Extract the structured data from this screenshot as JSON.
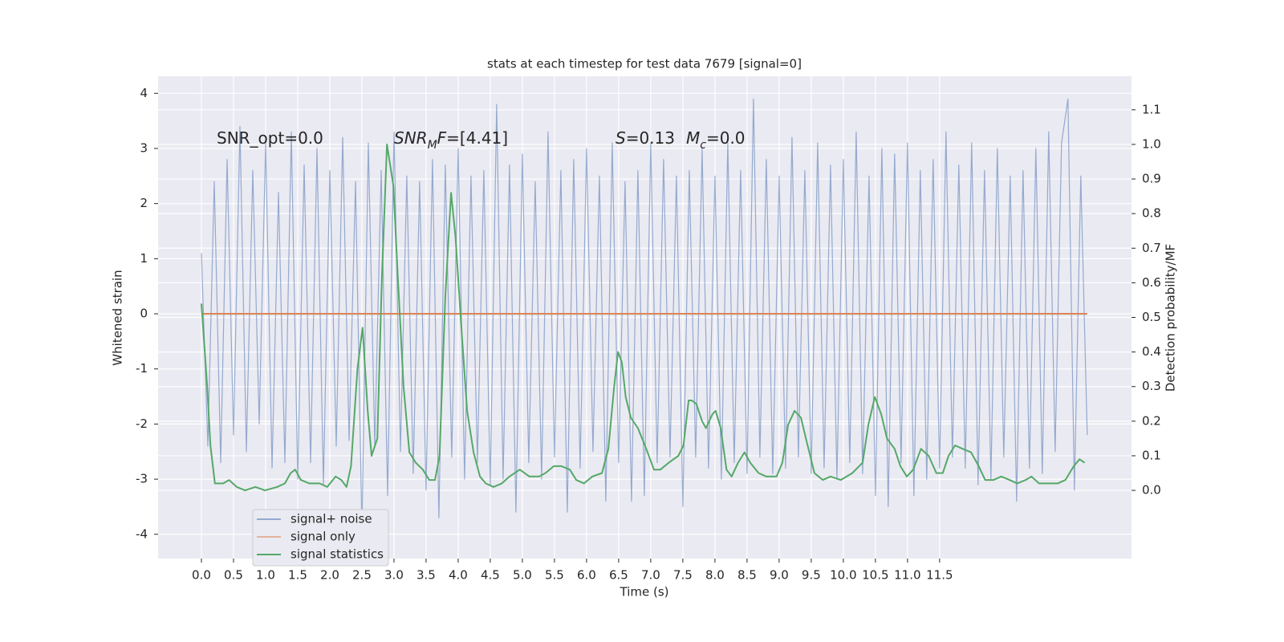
{
  "chart_data": {
    "type": "line",
    "title": "stats at each timestep for test data 7679 [signal=0]",
    "xlabel": "Time (s)",
    "ylabel": "Whitened strain",
    "y2label": "Detection probability/MF",
    "xlim": [
      -0.675,
      14.49
    ],
    "ylim": [
      -4.44,
      4.31
    ],
    "y2lim": [
      -0.197,
      1.197
    ],
    "xticks": [
      {
        "value": 0,
        "label": "0.0"
      },
      0.5,
      {
        "value": 1,
        "label": "1.0"
      },
      1.5,
      {
        "value": 2,
        "label": "2.0"
      },
      2.5,
      {
        "value": 3,
        "label": "3.0"
      },
      3.5,
      {
        "value": 4,
        "label": "4.0"
      },
      4.5,
      {
        "value": 5,
        "label": "5.0"
      },
      5.5,
      {
        "value": 6,
        "label": "6.0"
      },
      6.5,
      {
        "value": 7,
        "label": "7.0"
      },
      7.5,
      {
        "value": 8,
        "label": "8.0"
      },
      8.5,
      {
        "value": 9,
        "label": "9.0"
      },
      9.5,
      {
        "value": 10,
        "label": "10.0"
      },
      10.5,
      {
        "value": 11,
        "label": "11.0"
      },
      11.5
    ],
    "yticks": [
      -4,
      -3,
      -2,
      -1,
      0,
      1,
      2,
      3,
      4
    ],
    "y2ticks": [
      {
        "value": 0,
        "label": "0.0"
      },
      0.1,
      0.2,
      0.3,
      0.4,
      0.5,
      0.6,
      0.7,
      0.8,
      0.9,
      {
        "value": 1,
        "label": "1.0"
      },
      1.1
    ],
    "grid": true,
    "legend": "lower left",
    "annotations": [
      {
        "parts": [
          {
            "text": "SNR_opt=0.0"
          }
        ]
      },
      {
        "parts": [
          {
            "text": "SNR",
            "style": "italic"
          },
          {
            "text": "M",
            "style": "sub"
          },
          {
            "text": "F",
            "style": "italic"
          },
          {
            "text": "=[4.41]"
          }
        ]
      },
      {
        "parts": [
          {
            "text": "S",
            "style": "italic"
          },
          {
            "text": "=0.13"
          },
          {
            "text": "M",
            "style": "italic"
          },
          {
            "text": "c",
            "style": "sub"
          },
          {
            "text": "=0.0"
          }
        ]
      }
    ],
    "series": [
      {
        "name": "signal+ noise",
        "color": "#4c72b0",
        "x": [
          0,
          0.1,
          0.2,
          0.3,
          0.4,
          0.5,
          0.6,
          0.7,
          0.8,
          0.9,
          1,
          1.1,
          1.2,
          1.3,
          1.4,
          1.5,
          1.6,
          1.7,
          1.8,
          1.9,
          2,
          2.1,
          2.2,
          2.3,
          2.4,
          2.5,
          2.6,
          2.7,
          2.8,
          2.9,
          3,
          3.1,
          3.2,
          3.3,
          3.4,
          3.5,
          3.6,
          3.7,
          3.8,
          3.9,
          4,
          4.1,
          4.2,
          4.3,
          4.4,
          4.5,
          4.6,
          4.7,
          4.8,
          4.9,
          5,
          5.1,
          5.2,
          5.3,
          5.4,
          5.5,
          5.6,
          5.7,
          5.8,
          5.9,
          6,
          6.1,
          6.2,
          6.3,
          6.4,
          6.5,
          6.6,
          6.7,
          6.8,
          6.9,
          7,
          7.1,
          7.2,
          7.3,
          7.4,
          7.5,
          7.6,
          7.7,
          7.8,
          7.9,
          8,
          8.1,
          8.2,
          8.3,
          8.4,
          8.5,
          8.6,
          8.7,
          8.8,
          8.9,
          9,
          9.1,
          9.2,
          9.3,
          9.4,
          9.5,
          9.6,
          9.7,
          9.8,
          9.9,
          10,
          10.1,
          10.2,
          10.3,
          10.4,
          10.5,
          10.6,
          10.7,
          10.8,
          10.9,
          11,
          11.1,
          11.2,
          11.3,
          11.4,
          11.5,
          11.6,
          11.7,
          11.8,
          11.9,
          12,
          12.1,
          12.2,
          12.3,
          12.4,
          12.5,
          12.6,
          12.7,
          12.8,
          12.9,
          13,
          13.1,
          13.2,
          13.3,
          13.4,
          13.5,
          13.6,
          13.7,
          13.8
        ],
        "values": [
          1.1,
          -2.4,
          2.4,
          -2.7,
          2.8,
          -2.2,
          3.4,
          -2.5,
          2.6,
          -2.0,
          3.1,
          -2.8,
          2.2,
          -2.7,
          3.3,
          -3.0,
          2.7,
          -2.7,
          3.0,
          -3.1,
          2.6,
          -2.4,
          3.2,
          -2.3,
          2.4,
          -3.9,
          3.1,
          -2.4,
          2.6,
          -3.3,
          3.3,
          -2.5,
          2.5,
          -2.9,
          2.4,
          -3.2,
          2.8,
          -3.7,
          2.7,
          -2.6,
          3.0,
          -3.0,
          2.5,
          -2.7,
          2.6,
          -3.1,
          3.8,
          -3.0,
          2.7,
          -3.6,
          2.9,
          -2.7,
          2.4,
          -3.0,
          3.3,
          -2.6,
          2.6,
          -3.6,
          2.8,
          -2.8,
          3.0,
          -2.5,
          2.5,
          -3.4,
          3.1,
          -2.7,
          2.4,
          -3.4,
          2.6,
          -3.3,
          3.1,
          -2.7,
          2.8,
          -2.6,
          2.5,
          -3.5,
          2.6,
          -2.6,
          3.0,
          -2.8,
          2.5,
          -3.0,
          3.1,
          -2.7,
          2.6,
          -2.9,
          3.9,
          -2.6,
          2.8,
          -2.9,
          2.5,
          -2.8,
          3.2,
          -2.6,
          2.6,
          -2.9,
          3.1,
          -2.8,
          2.7,
          -3.0,
          2.8,
          -2.7,
          3.3,
          -2.9,
          2.5,
          -3.3,
          3.0,
          -3.5,
          2.9,
          -2.7,
          3.1,
          -3.3,
          2.6,
          -3.0,
          2.8,
          -2.8,
          3.3,
          -2.6,
          2.7,
          -2.8,
          3.1,
          -3.1,
          2.6,
          -3.0,
          3.0,
          -2.6,
          2.5,
          -3.4,
          2.6,
          -2.8,
          3.0,
          -2.9,
          3.3,
          -2.5,
          3.1,
          3.9,
          -3.2,
          2.5,
          -2.2
        ]
      },
      {
        "name": "signal only",
        "color": "#dd8452",
        "x": [
          0,
          13.8
        ],
        "values": [
          0,
          0
        ]
      },
      {
        "name": "signal statistics",
        "color": "#55a868",
        "axis": "y2",
        "x": [
          0,
          0.09,
          0.14,
          0.21,
          0.34,
          0.43,
          0.55,
          0.68,
          0.84,
          0.99,
          1.18,
          1.3,
          1.39,
          1.46,
          1.55,
          1.68,
          1.84,
          1.96,
          2.09,
          2.18,
          2.26,
          2.33,
          2.43,
          2.51,
          2.59,
          2.65,
          2.74,
          2.81,
          2.89,
          2.99,
          3.05,
          3.15,
          3.24,
          3.34,
          3.45,
          3.55,
          3.64,
          3.71,
          3.8,
          3.89,
          3.96,
          4.05,
          4.14,
          4.24,
          4.34,
          4.43,
          4.55,
          4.68,
          4.8,
          4.96,
          5.11,
          5.26,
          5.36,
          5.49,
          5.61,
          5.74,
          5.84,
          5.96,
          6.09,
          6.24,
          6.34,
          6.43,
          6.49,
          6.55,
          6.61,
          6.69,
          6.8,
          6.93,
          7.05,
          7.15,
          7.28,
          7.43,
          7.51,
          7.59,
          7.64,
          7.71,
          7.8,
          7.86,
          7.96,
          8.01,
          8.09,
          8.18,
          8.26,
          8.36,
          8.46,
          8.55,
          8.68,
          8.8,
          8.96,
          9.05,
          9.14,
          9.24,
          9.34,
          9.43,
          9.55,
          9.68,
          9.8,
          9.96,
          10.14,
          10.3,
          10.39,
          10.49,
          10.59,
          10.68,
          10.8,
          10.89,
          10.99,
          11.09,
          11.21,
          11.33,
          11.45,
          11.55,
          11.64,
          11.74,
          11.86,
          11.99,
          12.11,
          12.21,
          12.34,
          12.46,
          12.59,
          12.71,
          12.84,
          12.93,
          13.05,
          13.18,
          13.34,
          13.46,
          13.59,
          13.68,
          13.76
        ],
        "values": [
          0.54,
          0.3,
          0.13,
          0.02,
          0.02,
          0.03,
          0.01,
          0,
          0.01,
          0,
          0.01,
          0.02,
          0.05,
          0.06,
          0.03,
          0.02,
          0.02,
          0.01,
          0.04,
          0.03,
          0.01,
          0.07,
          0.35,
          0.47,
          0.23,
          0.1,
          0.15,
          0.61,
          1.0,
          0.88,
          0.65,
          0.3,
          0.11,
          0.08,
          0.06,
          0.03,
          0.03,
          0.1,
          0.56,
          0.86,
          0.73,
          0.47,
          0.23,
          0.11,
          0.04,
          0.02,
          0.01,
          0.02,
          0.04,
          0.06,
          0.04,
          0.04,
          0.05,
          0.07,
          0.07,
          0.06,
          0.03,
          0.02,
          0.04,
          0.05,
          0.12,
          0.3,
          0.4,
          0.37,
          0.27,
          0.21,
          0.18,
          0.12,
          0.06,
          0.06,
          0.08,
          0.1,
          0.13,
          0.26,
          0.26,
          0.25,
          0.2,
          0.18,
          0.22,
          0.23,
          0.18,
          0.06,
          0.04,
          0.08,
          0.11,
          0.08,
          0.05,
          0.04,
          0.04,
          0.08,
          0.19,
          0.23,
          0.21,
          0.14,
          0.05,
          0.03,
          0.04,
          0.03,
          0.05,
          0.08,
          0.19,
          0.27,
          0.22,
          0.15,
          0.12,
          0.07,
          0.04,
          0.06,
          0.12,
          0.1,
          0.05,
          0.05,
          0.1,
          0.13,
          0.12,
          0.11,
          0.07,
          0.03,
          0.03,
          0.04,
          0.03,
          0.02,
          0.03,
          0.04,
          0.02,
          0.02,
          0.02,
          0.03,
          0.07,
          0.09,
          0.08
        ]
      }
    ]
  }
}
